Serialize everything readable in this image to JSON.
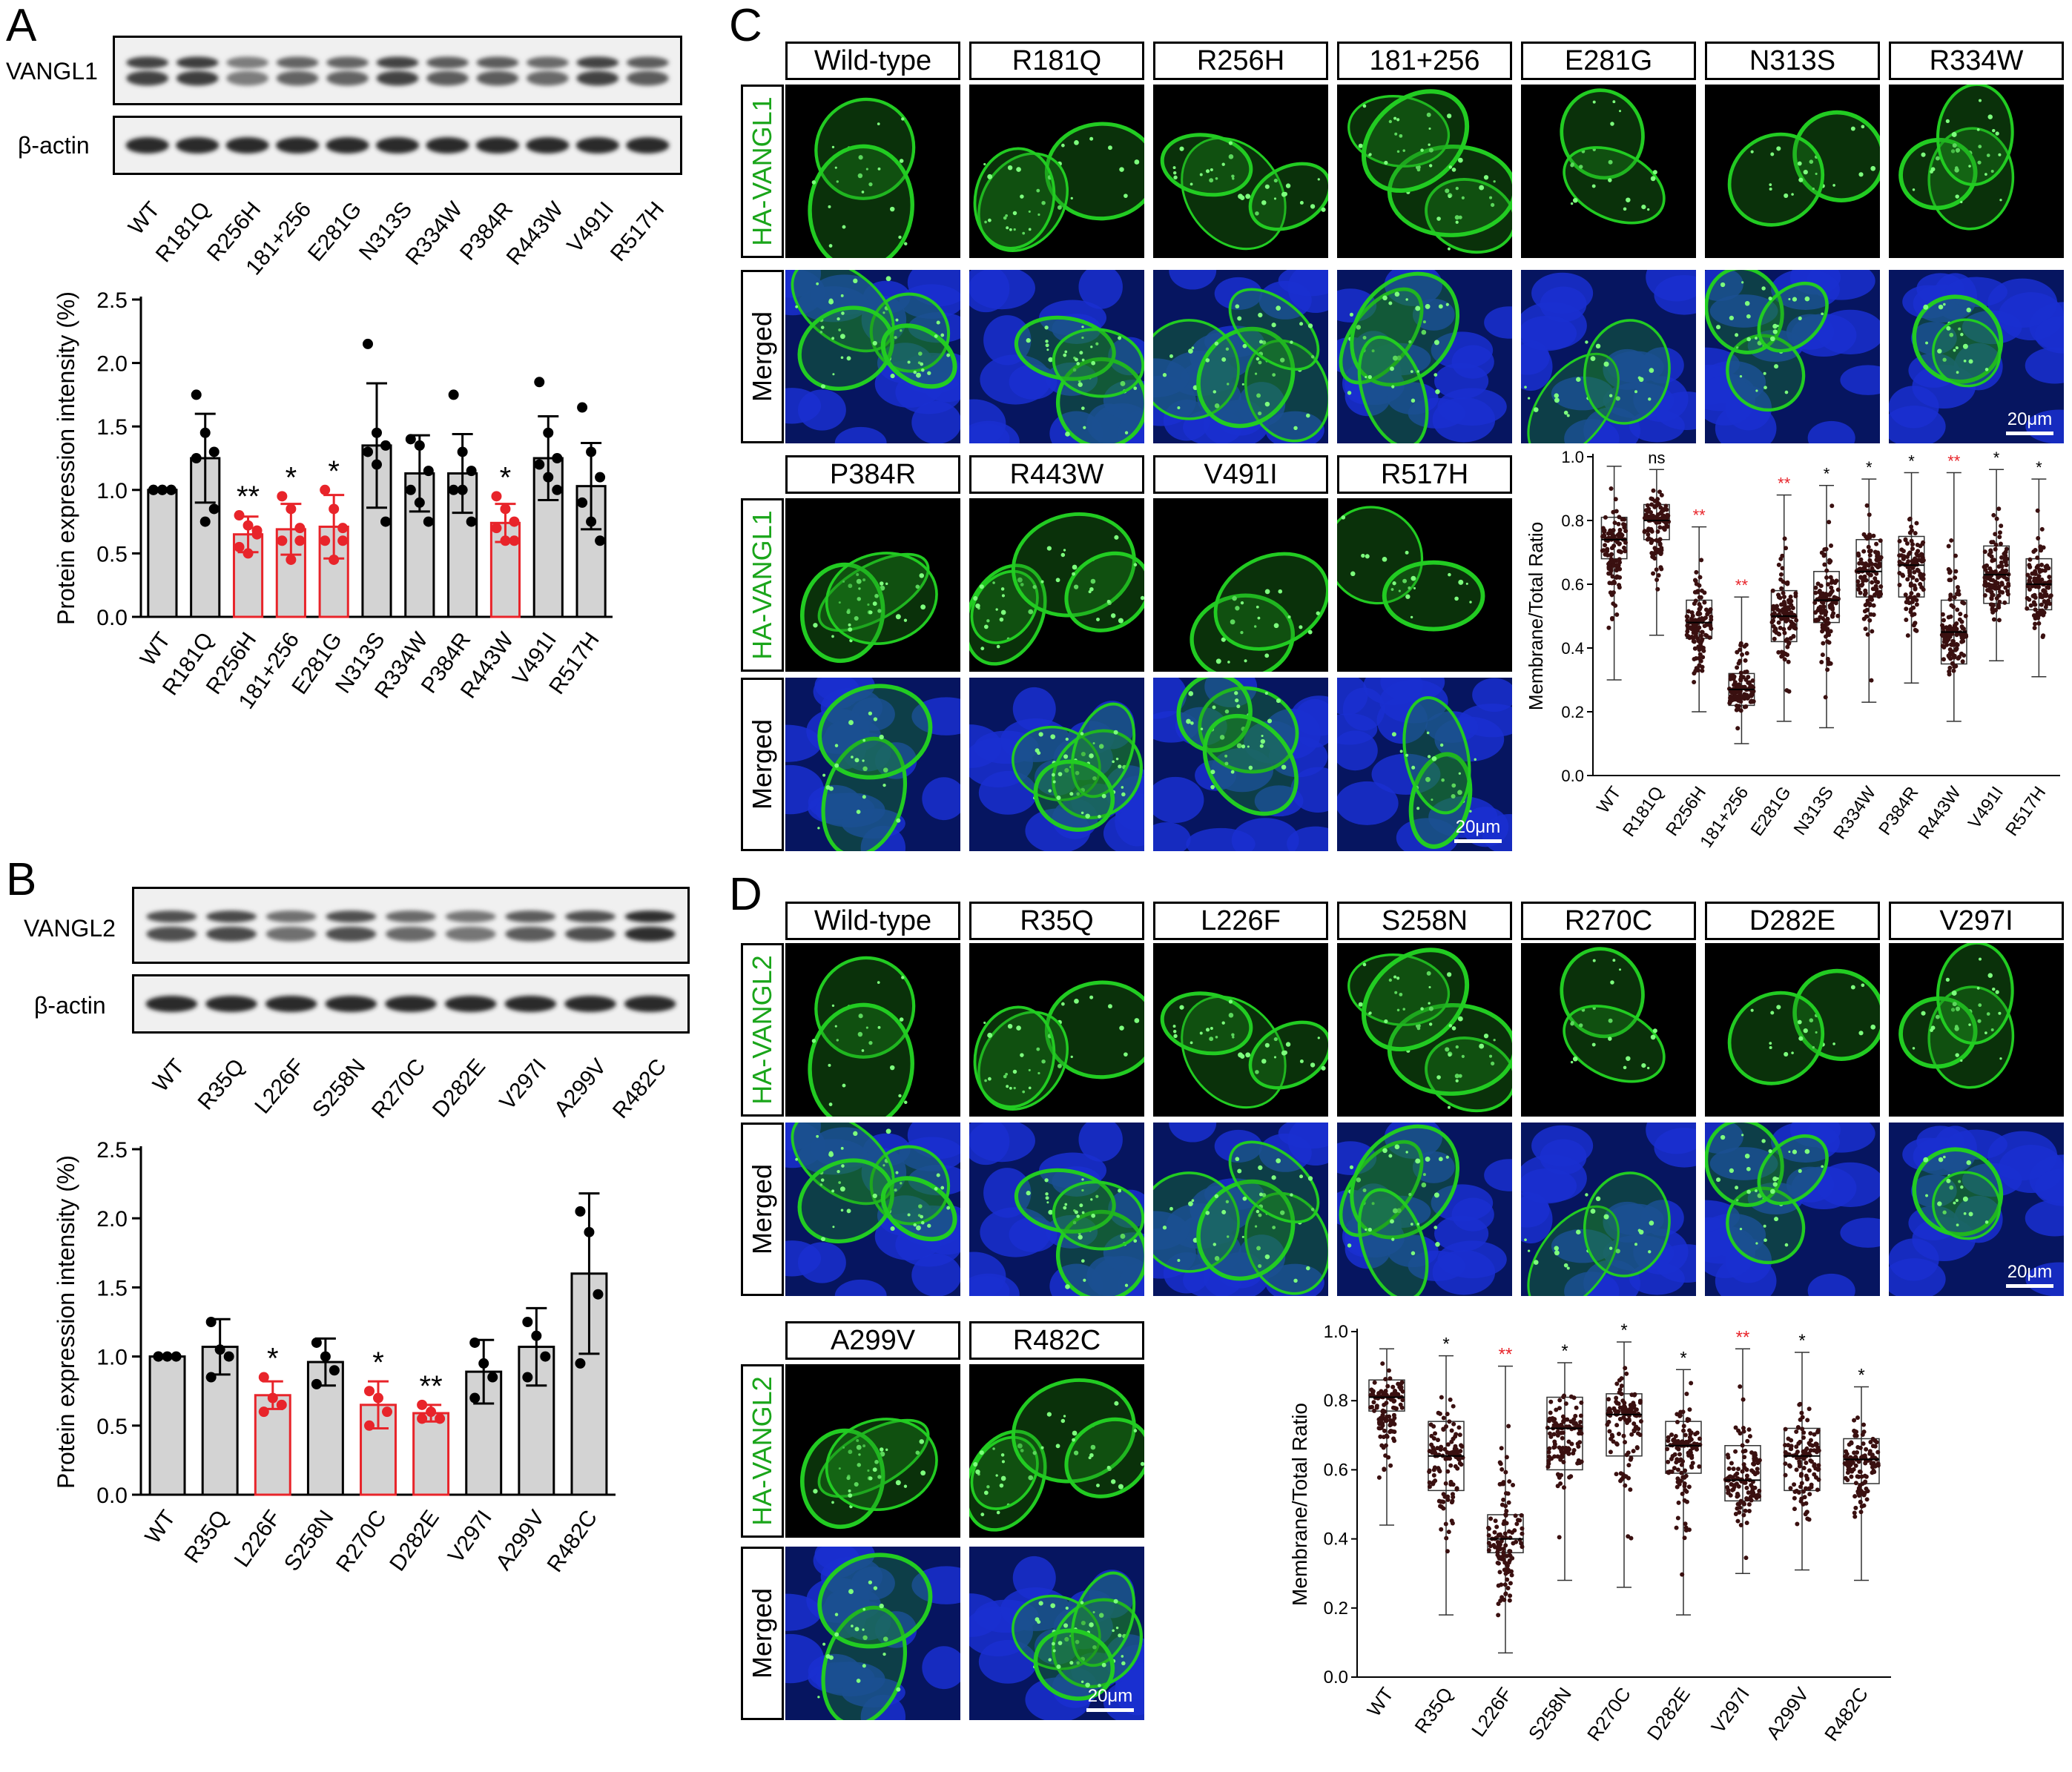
{
  "panels": {
    "a": "A",
    "b": "B",
    "c": "C",
    "d": "D"
  },
  "panelA": {
    "blot_labels": {
      "top": "VANGL1",
      "bottom": "β-actin"
    },
    "lanes": [
      "WT",
      "R181Q",
      "R256H",
      "181+256",
      "E281G",
      "N313S",
      "R334W",
      "P384R",
      "R443W",
      "V491I",
      "R517H"
    ],
    "band_intensity": [
      0.8,
      0.85,
      0.35,
      0.55,
      0.55,
      0.8,
      0.6,
      0.6,
      0.5,
      0.8,
      0.6
    ]
  },
  "panelB": {
    "blot_labels": {
      "top": "VANGL2",
      "bottom": "β-actin"
    },
    "lanes": [
      "WT",
      "R35Q",
      "L226F",
      "S258N",
      "R270C",
      "D282E",
      "V297I",
      "A299V",
      "R482C"
    ],
    "band_intensity": [
      0.7,
      0.75,
      0.45,
      0.7,
      0.5,
      0.4,
      0.6,
      0.7,
      0.95
    ]
  },
  "panelC": {
    "headers_row1": [
      "Wild-type",
      "R181Q",
      "R256H",
      "181+256",
      "E281G",
      "N313S",
      "R334W"
    ],
    "headers_row2": [
      "P384R",
      "R443W",
      "V491I",
      "R517H"
    ],
    "row_label_green": "HA-VANGL1",
    "row_label_merged": "Merged",
    "scale": "20μm"
  },
  "panelD": {
    "headers_row1": [
      "Wild-type",
      "R35Q",
      "L226F",
      "S258N",
      "R270C",
      "D282E",
      "V297I"
    ],
    "headers_row2": [
      "A299V",
      "R482C"
    ],
    "row_label_green": "HA-VANGL2",
    "row_label_merged": "Merged",
    "scale": "20μm"
  },
  "colors": {
    "significant": "#e8242a",
    "normal": "#000000",
    "bar_fill": "#d3d3d3",
    "green_channel": "#22cc22",
    "blue_channel": "#1a2fd0"
  },
  "chart_data": [
    {
      "id": "A-bar",
      "type": "bar",
      "ylabel": "Protein expression intensity (%)",
      "ylim": [
        0,
        2.5
      ],
      "yticks": [
        "0.0",
        "0.5",
        "1.0",
        "1.5",
        "2.0",
        "2.5"
      ],
      "categories": [
        "WT",
        "R181Q",
        "R256H",
        "181+256",
        "E281G",
        "N313S",
        "R334W",
        "P384R",
        "R443W",
        "V491I",
        "R517H"
      ],
      "values": [
        1.0,
        1.25,
        0.65,
        0.69,
        0.71,
        1.35,
        1.13,
        1.13,
        0.74,
        1.25,
        1.03
      ],
      "sd": [
        0.0,
        0.35,
        0.14,
        0.2,
        0.25,
        0.49,
        0.3,
        0.31,
        0.15,
        0.33,
        0.34
      ],
      "points": [
        [
          1,
          1,
          1,
          1,
          1,
          1
        ],
        [
          1.75,
          1.45,
          1.3,
          1.25,
          0.75,
          0.85
        ],
        [
          0.8,
          0.72,
          0.68,
          0.55,
          0.5,
          0.65
        ],
        [
          0.95,
          0.85,
          0.7,
          0.6,
          0.45,
          0.6
        ],
        [
          1.0,
          0.85,
          0.7,
          0.6,
          0.45,
          0.6
        ],
        [
          2.15,
          1.45,
          1.35,
          1.3,
          1.2,
          0.75
        ],
        [
          1.4,
          1.35,
          1.15,
          1.0,
          0.9,
          0.75
        ],
        [
          1.75,
          1.3,
          1.15,
          1.0,
          1.0,
          0.75
        ],
        [
          0.95,
          0.85,
          0.75,
          0.7,
          0.6,
          0.6
        ],
        [
          1.85,
          1.45,
          1.25,
          1.2,
          1.1,
          1.0
        ],
        [
          1.65,
          1.3,
          1.1,
          0.9,
          0.75,
          0.6
        ]
      ],
      "significance": [
        "",
        "",
        "**",
        "*",
        "*",
        "",
        "",
        "",
        "*",
        "",
        ""
      ],
      "highlight": [
        false,
        false,
        true,
        true,
        true,
        false,
        false,
        false,
        true,
        false,
        false
      ]
    },
    {
      "id": "B-bar",
      "type": "bar",
      "ylabel": "Protein expression intensity (%)",
      "ylim": [
        0,
        2.5
      ],
      "yticks": [
        "0.0",
        "0.5",
        "1.0",
        "1.5",
        "2.0",
        "2.5"
      ],
      "categories": [
        "WT",
        "R35Q",
        "L226F",
        "S258N",
        "R270C",
        "D282E",
        "V297I",
        "A299V",
        "R482C"
      ],
      "values": [
        1.0,
        1.07,
        0.72,
        0.96,
        0.65,
        0.59,
        0.89,
        1.07,
        1.6
      ],
      "sd": [
        0.0,
        0.2,
        0.1,
        0.17,
        0.17,
        0.06,
        0.23,
        0.28,
        0.58
      ],
      "points": [
        [
          1,
          1,
          1,
          1
        ],
        [
          1.25,
          1.05,
          1.0,
          0.85
        ],
        [
          0.85,
          0.7,
          0.65,
          0.6
        ],
        [
          1.1,
          1.0,
          0.9,
          0.8
        ],
        [
          0.75,
          0.7,
          0.6,
          0.5
        ],
        [
          0.65,
          0.6,
          0.55,
          0.55
        ],
        [
          1.1,
          0.95,
          0.85,
          0.7
        ],
        [
          1.25,
          1.15,
          1.0,
          0.85
        ],
        [
          2.05,
          1.9,
          1.45,
          0.95
        ]
      ],
      "significance": [
        "",
        "",
        "*",
        "",
        "*",
        "**",
        "",
        "",
        ""
      ],
      "highlight": [
        false,
        false,
        true,
        false,
        true,
        true,
        false,
        false,
        false
      ]
    },
    {
      "id": "C-box",
      "type": "box",
      "ylabel": "Membrane/Total Ratio",
      "ylim": [
        0,
        1.0
      ],
      "yticks": [
        "0.0",
        "0.2",
        "0.4",
        "0.6",
        "0.8",
        "1.0"
      ],
      "categories": [
        "WT",
        "R181Q",
        "R256H",
        "181+256",
        "E281G",
        "N313S",
        "R334W",
        "P384R",
        "R443W",
        "V491I",
        "R517H"
      ],
      "min": [
        0.3,
        0.44,
        0.2,
        0.1,
        0.17,
        0.15,
        0.23,
        0.29,
        0.17,
        0.36,
        0.31
      ],
      "q1": [
        0.68,
        0.74,
        0.43,
        0.22,
        0.42,
        0.48,
        0.56,
        0.56,
        0.35,
        0.54,
        0.52
      ],
      "median": [
        0.74,
        0.8,
        0.48,
        0.27,
        0.5,
        0.55,
        0.64,
        0.66,
        0.45,
        0.63,
        0.6
      ],
      "q3": [
        0.81,
        0.85,
        0.55,
        0.32,
        0.58,
        0.64,
        0.74,
        0.75,
        0.55,
        0.72,
        0.68
      ],
      "max": [
        0.97,
        0.96,
        0.78,
        0.56,
        0.88,
        0.91,
        0.93,
        0.95,
        0.95,
        0.96,
        0.93
      ],
      "significance": [
        "",
        "ns",
        "**",
        "**",
        "**",
        "*",
        "*",
        "*",
        "**",
        "*",
        "*"
      ],
      "sig_red": [
        false,
        false,
        true,
        true,
        true,
        false,
        false,
        false,
        true,
        false,
        false
      ]
    },
    {
      "id": "D-box",
      "type": "box",
      "ylabel": "Membrane/Total Ratio",
      "ylim": [
        0,
        1.0
      ],
      "yticks": [
        "0.0",
        "0.2",
        "0.4",
        "0.6",
        "0.8",
        "1.0"
      ],
      "categories": [
        "WT",
        "R35Q",
        "L226F",
        "S258N",
        "R270C",
        "D282E",
        "V297I",
        "A299V",
        "R482C"
      ],
      "min": [
        0.44,
        0.18,
        0.07,
        0.28,
        0.26,
        0.18,
        0.3,
        0.31,
        0.28
      ],
      "q1": [
        0.77,
        0.54,
        0.36,
        0.6,
        0.64,
        0.59,
        0.51,
        0.54,
        0.56
      ],
      "median": [
        0.81,
        0.64,
        0.4,
        0.72,
        0.76,
        0.67,
        0.57,
        0.64,
        0.63
      ],
      "q3": [
        0.86,
        0.74,
        0.47,
        0.81,
        0.82,
        0.74,
        0.67,
        0.72,
        0.69
      ],
      "max": [
        0.95,
        0.93,
        0.9,
        0.91,
        0.97,
        0.89,
        0.95,
        0.94,
        0.84
      ],
      "significance": [
        "",
        "*",
        "**",
        "*",
        "*",
        "*",
        "**",
        "*",
        "*"
      ],
      "sig_red": [
        false,
        false,
        true,
        false,
        false,
        false,
        true,
        false,
        false
      ]
    }
  ]
}
